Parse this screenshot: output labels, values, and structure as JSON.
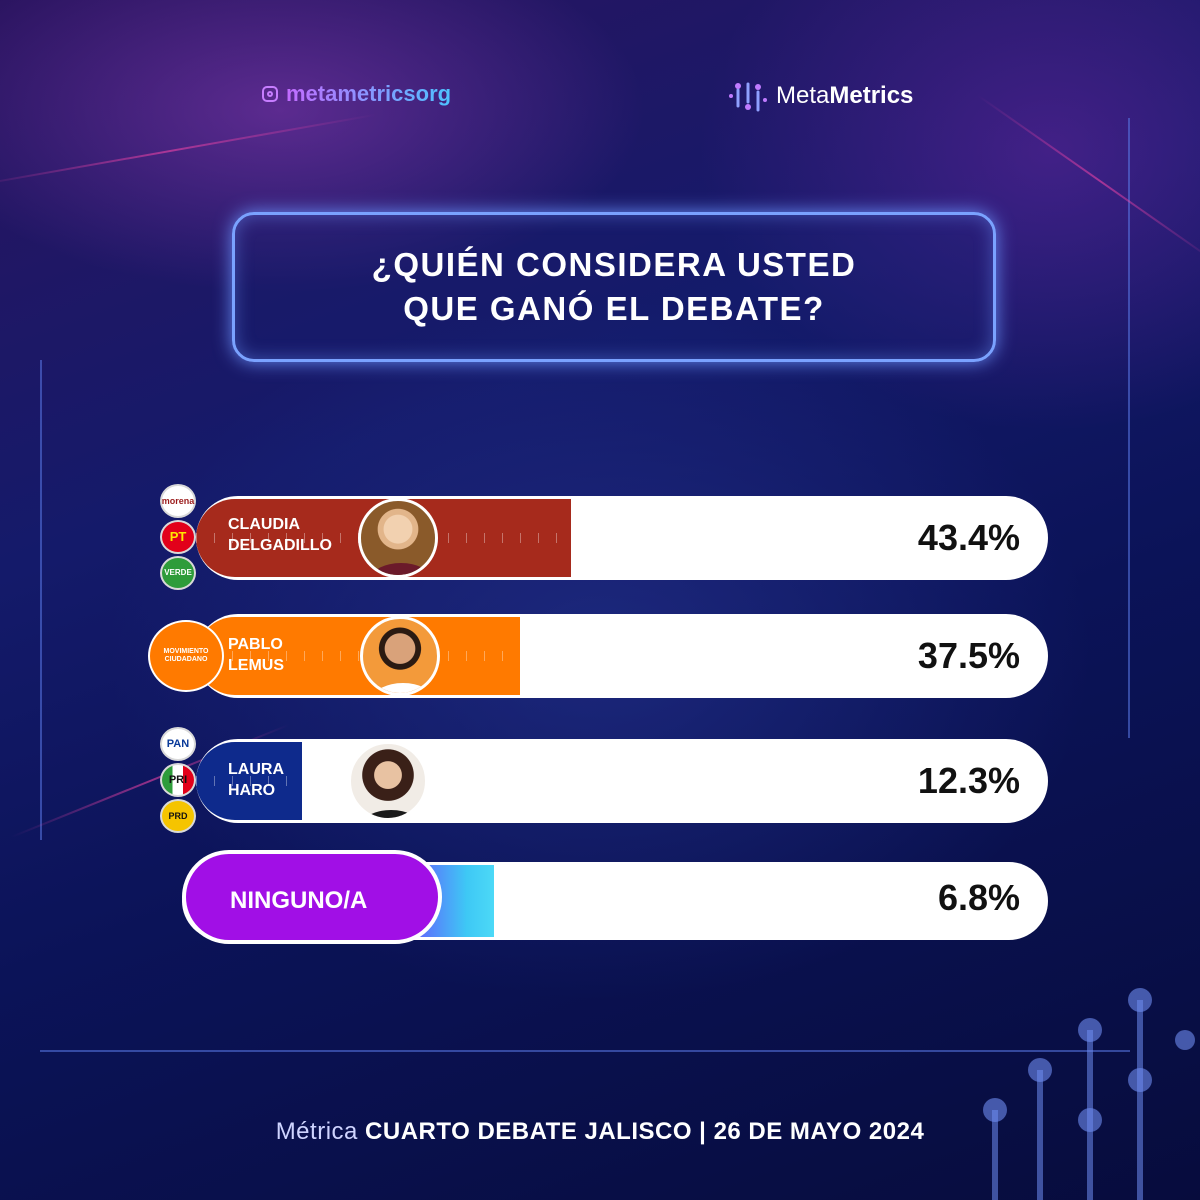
{
  "header": {
    "handle": "metametricsorg",
    "brand_light": "Meta",
    "brand_bold": "Metrics"
  },
  "question": {
    "line1": "¿QUIÉN CONSIDERA USTED",
    "line2": "QUE GANÓ EL DEBATE?"
  },
  "chart_data": {
    "type": "bar",
    "orientation": "horizontal",
    "title": "¿QUIÉN CONSIDERA USTED QUE GANÓ EL DEBATE?",
    "unit": "%",
    "xlim": [
      0,
      100
    ],
    "categories": [
      "CLAUDIA DELGADILLO",
      "PABLO LEMUS",
      "LAURA HARO",
      "NINGUNO/A"
    ],
    "values": [
      43.4,
      37.5,
      12.3,
      6.8
    ],
    "labels": [
      "43.4%",
      "37.5%",
      "12.3%",
      "6.8%"
    ],
    "colors": [
      "#a62a1c",
      "#ff7a00",
      "#0e2a8c",
      "#a10fe6"
    ]
  },
  "candidates": [
    {
      "name_line1": "CLAUDIA",
      "name_line2": "DELGADILLO",
      "pct_label": "43.4%",
      "value": 43.4,
      "color": "#a62a1c",
      "parties": [
        {
          "label": "morena",
          "color": "#9b1c1c"
        },
        {
          "label": "PT",
          "color": "#e2001a"
        },
        {
          "label": "VERDE",
          "color": "#2e9c3a"
        }
      ]
    },
    {
      "name_line1": "PABLO",
      "name_line2": "LEMUS",
      "pct_label": "37.5%",
      "value": 37.5,
      "color": "#ff7a00",
      "parties": [
        {
          "label": "MOVIMIENTO CIUDADANO",
          "color": "#ff7a00"
        }
      ]
    },
    {
      "name_line1": "LAURA",
      "name_line2": "HARO",
      "pct_label": "12.3%",
      "value": 12.3,
      "color": "#0e2a8c",
      "parties": [
        {
          "label": "PAN",
          "color": "#0a3a99"
        },
        {
          "label": "PRI",
          "color": "#e2001a"
        },
        {
          "label": "PRD",
          "color": "#f5c400"
        }
      ]
    }
  ],
  "ninguno": {
    "label": "NINGUNO/A",
    "pct_label": "6.8%",
    "value": 6.8
  },
  "footer": {
    "light": "Métrica",
    "bold": "CUARTO DEBATE JALISCO | 26 DE MAYO 2024"
  }
}
